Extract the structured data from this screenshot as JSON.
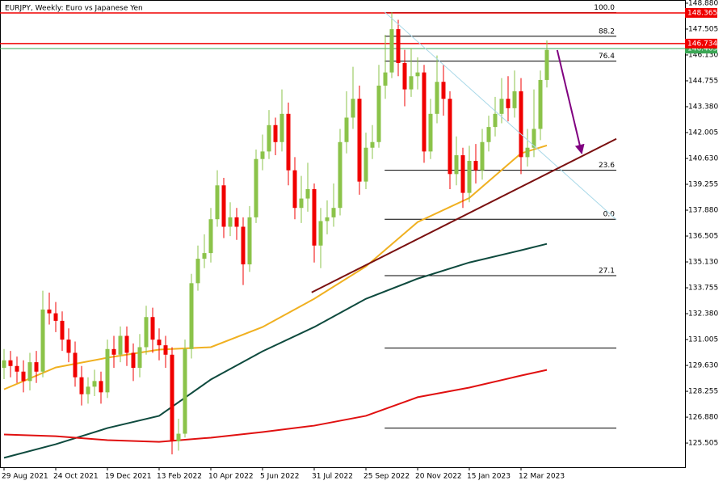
{
  "chart_data": {
    "type": "candlestick",
    "title": "EURJPY, Weekly:  Euro vs Japanese Yen",
    "categories": [
      "29 Aug 2021",
      null,
      null,
      null,
      null,
      null,
      null,
      null,
      "24 Oct 2021",
      null,
      null,
      null,
      null,
      null,
      null,
      null,
      "19 Dec 2021",
      null,
      null,
      null,
      null,
      null,
      null,
      null,
      "13 Feb 2022",
      null,
      null,
      null,
      null,
      null,
      null,
      null,
      "10 Apr 2022",
      null,
      null,
      null,
      null,
      null,
      null,
      null,
      "5 Jun 2022",
      null,
      null,
      null,
      null,
      null,
      null,
      null,
      "31 Jul 2022",
      null,
      null,
      null,
      null,
      null,
      null,
      null,
      "25 Sep 2022",
      null,
      null,
      null,
      null,
      null,
      null,
      null,
      "20 Nov 2022",
      null,
      null,
      null,
      null,
      null,
      null,
      null,
      "15 Jan 2023",
      null,
      null,
      null,
      null,
      null,
      null,
      null,
      "12 Mar 2023",
      null,
      null,
      null,
      null
    ],
    "open": [
      129.5,
      129.9,
      129.6,
      129.3,
      128.8,
      129.8,
      129.3,
      132.6,
      132.4,
      132.0,
      131.0,
      130.3,
      129.0,
      128.1,
      128.5,
      128.8,
      128.2,
      130.5,
      130.2,
      131.2,
      130.3,
      129.5,
      130.6,
      132.2,
      131.0,
      130.7,
      130.2,
      125.6,
      126.0,
      130.5,
      134.0,
      135.3,
      135.6,
      137.4,
      139.2,
      137.0,
      137.5,
      137.0,
      135.0,
      137.5,
      140.6,
      141.0,
      142.4,
      141.5,
      143.0,
      140.0,
      138.0,
      138.5,
      139.0,
      136.0,
      137.3,
      137.5,
      138.0,
      141.5,
      142.8,
      143.8,
      139.4,
      141.2,
      141.5,
      144.5,
      145.2,
      147.5,
      145.7,
      144.3,
      145.0,
      145.2,
      141.0,
      143.0,
      144.7,
      143.8,
      139.8,
      140.8,
      138.8,
      140.5,
      140.0,
      141.5,
      142.3,
      143.0,
      143.8,
      143.3,
      144.2,
      140.7,
      141.2,
      142.2,
      144.8
    ],
    "high": [
      130.5,
      130.4,
      130.1,
      129.9,
      130.3,
      130.4,
      133.6,
      133.5,
      133.0,
      132.5,
      131.6,
      130.9,
      129.6,
      129.0,
      129.4,
      129.3,
      131.0,
      131.2,
      131.7,
      131.7,
      130.8,
      131.3,
      132.8,
      132.7,
      131.6,
      131.2,
      130.6,
      126.8,
      131.0,
      134.5,
      136.0,
      136.6,
      138.0,
      140.0,
      139.6,
      138.3,
      138.0,
      137.5,
      138.1,
      141.1,
      141.9,
      143.2,
      142.8,
      144.3,
      143.6,
      140.7,
      139.7,
      140.4,
      139.3,
      138.0,
      138.4,
      139.3,
      142.2,
      144.2,
      145.5,
      144.5,
      142.0,
      142.4,
      145.6,
      147.2,
      148.4,
      148.0,
      146.4,
      146.5,
      146.0,
      145.6,
      143.8,
      146.1,
      145.6,
      144.2,
      141.8,
      141.2,
      141.3,
      141.4,
      142.2,
      142.9,
      143.9,
      144.9,
      145.0,
      145.3,
      144.9,
      142.2,
      144.3,
      145.3,
      146.9
    ],
    "low": [
      128.9,
      129.0,
      128.7,
      128.2,
      128.3,
      128.7,
      129.0,
      131.8,
      131.4,
      130.4,
      129.8,
      128.5,
      127.5,
      127.6,
      128.0,
      127.6,
      127.9,
      129.5,
      129.8,
      129.6,
      128.8,
      129.0,
      130.2,
      130.3,
      129.9,
      129.5,
      124.9,
      125.1,
      125.8,
      130.0,
      133.6,
      134.8,
      135.1,
      137.0,
      136.4,
      136.5,
      136.3,
      133.9,
      134.6,
      137.2,
      140.0,
      140.6,
      140.8,
      141.0,
      139.2,
      137.4,
      137.2,
      137.8,
      135.1,
      134.8,
      136.6,
      137.0,
      137.6,
      140.9,
      142.2,
      138.7,
      139.0,
      140.6,
      141.2,
      143.8,
      144.9,
      145.0,
      143.4,
      143.9,
      144.3,
      140.4,
      140.6,
      142.5,
      142.9,
      139.0,
      139.2,
      138.0,
      138.3,
      139.3,
      139.5,
      141.0,
      141.8,
      142.5,
      142.6,
      142.8,
      139.8,
      140.2,
      140.7,
      141.6,
      144.4
    ],
    "close": [
      129.9,
      129.6,
      129.3,
      128.8,
      129.8,
      129.3,
      132.6,
      132.4,
      132.0,
      131.0,
      130.3,
      129.0,
      128.1,
      128.5,
      128.8,
      128.2,
      130.5,
      130.2,
      131.2,
      130.3,
      129.5,
      130.6,
      132.2,
      131.0,
      130.7,
      130.2,
      125.6,
      126.0,
      130.5,
      134.0,
      135.3,
      135.6,
      137.4,
      139.2,
      137.0,
      137.5,
      137.0,
      135.0,
      137.5,
      140.6,
      141.0,
      142.4,
      141.5,
      143.0,
      140.0,
      138.0,
      138.5,
      139.0,
      136.0,
      137.3,
      137.5,
      138.0,
      141.5,
      142.8,
      143.8,
      139.4,
      141.2,
      141.5,
      144.5,
      145.2,
      147.5,
      145.7,
      144.3,
      145.0,
      145.2,
      141.0,
      143.0,
      144.7,
      143.8,
      139.8,
      140.8,
      138.8,
      140.5,
      140.0,
      141.5,
      142.3,
      143.0,
      143.8,
      143.3,
      144.2,
      140.7,
      141.2,
      142.2,
      144.8,
      146.4
    ],
    "up_color": "#8bc34a",
    "down_color": "#f00000",
    "ylim": [
      124.22,
      149.05
    ],
    "yticks": [
      {
        "value": 148.88,
        "label": "148.880"
      },
      {
        "value": 147.505,
        "label": "147.505"
      },
      {
        "value": 146.13,
        "label": "146.130"
      },
      {
        "value": 144.755,
        "label": "144.755"
      },
      {
        "value": 143.38,
        "label": "143.380"
      },
      {
        "value": 142.005,
        "label": "142.005"
      },
      {
        "value": 140.63,
        "label": "140.630"
      },
      {
        "value": 139.255,
        "label": "139.255"
      },
      {
        "value": 137.88,
        "label": "137.880"
      },
      {
        "value": 136.505,
        "label": "136.505"
      },
      {
        "value": 135.13,
        "label": "135.130"
      },
      {
        "value": 133.755,
        "label": "133.755"
      },
      {
        "value": 132.38,
        "label": "132.380"
      },
      {
        "value": 131.005,
        "label": "131.005"
      },
      {
        "value": 129.63,
        "label": "129.630"
      },
      {
        "value": 128.255,
        "label": "128.255"
      },
      {
        "value": 126.88,
        "label": "126.880"
      },
      {
        "value": 125.505,
        "label": "125.505"
      }
    ],
    "ma": [
      {
        "color": "#f0b020",
        "x": [
          0,
          8,
          16,
          24,
          32,
          40,
          48,
          56,
          64,
          72,
          80,
          84
        ],
        "values": [
          128.36,
          129.52,
          130.04,
          130.47,
          130.6,
          131.67,
          133.17,
          134.89,
          137.25,
          138.53,
          140.9,
          141.32
        ]
      },
      {
        "color": "#0e4a3e",
        "x": [
          0,
          8,
          16,
          24,
          32,
          40,
          48,
          56,
          64,
          72,
          80,
          84
        ],
        "values": [
          124.72,
          125.44,
          126.3,
          126.95,
          128.88,
          130.38,
          131.67,
          133.17,
          134.24,
          135.1,
          135.75,
          136.09
        ]
      },
      {
        "color": "#e01010",
        "x": [
          0,
          8,
          16,
          24,
          32,
          40,
          48,
          56,
          64,
          72,
          80,
          84
        ],
        "values": [
          125.96,
          125.87,
          125.66,
          125.57,
          125.79,
          126.09,
          126.43,
          126.95,
          127.94,
          128.45,
          129.09,
          129.39
        ]
      }
    ],
    "price_lines": [
      {
        "value": 146.465,
        "color": "#3aa655"
      },
      {
        "value": 148.365,
        "color": "#f00000"
      },
      {
        "value": 146.734,
        "color": "#f00000"
      }
    ],
    "fib": {
      "x": [
        58.9,
        94.75
      ],
      "levels": [
        {
          "value": 148.38,
          "label": "100.0"
        },
        {
          "value": 147.12,
          "label": "88.2"
        },
        {
          "value": 145.8,
          "label": "76.4"
        },
        {
          "value": 140.0,
          "label": "23.6"
        },
        {
          "value": 137.4,
          "label": "0.0"
        },
        {
          "value": 134.4,
          "label": "27.1"
        },
        130.55,
        126.3
      ]
    },
    "lines": [
      {
        "color": "#a8d8e8",
        "x": [
          58.9,
          94.75
        ],
        "values": [
          148.41,
          137.38
        ]
      },
      {
        "color": "#7a1010",
        "x": [
          47.6,
          94.75
        ],
        "values": [
          133.51,
          141.67
        ]
      },
      {
        "color": "#800080",
        "x": [
          85.6,
          89.4
        ],
        "values": [
          146.39,
          140.9
        ],
        "arrow": true
      }
    ]
  }
}
